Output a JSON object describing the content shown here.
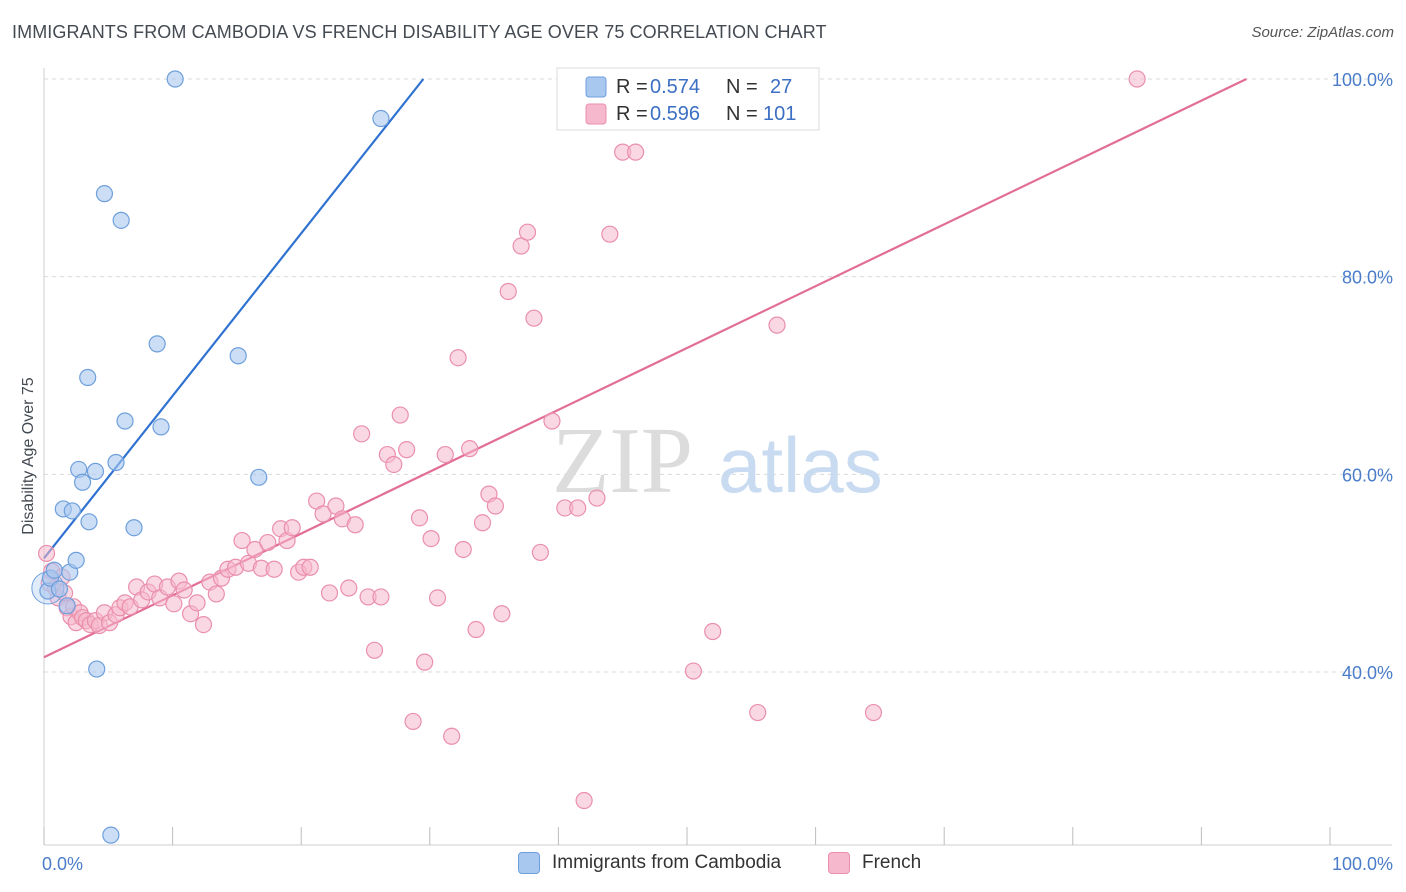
{
  "title": "IMMIGRANTS FROM CAMBODIA VS FRENCH DISABILITY AGE OVER 75 CORRELATION CHART",
  "source": "Source: ZipAtlas.com",
  "watermark": {
    "zip": "ZIP",
    "atlas": "atlas"
  },
  "legend": {
    "rows": [
      {
        "r_label": "R =",
        "r_value": "0.574",
        "n_label": "N =",
        "n_value": "27"
      },
      {
        "r_label": "R =",
        "r_value": "0.596",
        "n_label": "N =",
        "n_value": "101"
      }
    ]
  },
  "bottom_legend": {
    "series1": "Immigrants from Cambodia",
    "series2": "French"
  },
  "colors": {
    "blue_fill": "#a9c8f0",
    "blue_stroke": "#6e9fdc",
    "blue_line": "#2f72d0",
    "pink_fill": "#f6b8cc",
    "pink_stroke": "#ea8fac",
    "pink_line": "#e26d97",
    "tick_text": "#4a7cc9"
  },
  "chart_data": {
    "type": "scatter",
    "title": "IMMIGRANTS FROM CAMBODIA VS FRENCH DISABILITY AGE OVER 75 CORRELATION CHART",
    "xlabel": "",
    "ylabel": "Disability Age Over 75",
    "xlim": [
      0,
      100
    ],
    "ylim": [
      22.5,
      100
    ],
    "x_tick_labels": [
      "0.0%",
      "100.0%"
    ],
    "y_ticks": [
      40,
      60,
      80,
      100
    ],
    "y_tick_labels": [
      "40.0%",
      "60.0%",
      "80.0%",
      "100.0%"
    ],
    "grid": true,
    "series": [
      {
        "name": "Immigrants from Cambodia",
        "color": "#a9c8f0",
        "r": 0.574,
        "n": 27,
        "points": [
          [
            0.3,
            48.2
          ],
          [
            0.5,
            49.5
          ],
          [
            0.8,
            50.3
          ],
          [
            1.2,
            48.4
          ],
          [
            1.5,
            56.5
          ],
          [
            1.8,
            46.7
          ],
          [
            2.0,
            50.1
          ],
          [
            2.2,
            56.3
          ],
          [
            2.5,
            51.3
          ],
          [
            2.7,
            60.5
          ],
          [
            3.0,
            59.2
          ],
          [
            3.5,
            55.2
          ],
          [
            3.4,
            69.8
          ],
          [
            4.0,
            60.3
          ],
          [
            4.1,
            40.3
          ],
          [
            4.7,
            88.4
          ],
          [
            5.2,
            23.5
          ],
          [
            6.0,
            85.7
          ],
          [
            5.6,
            61.2
          ],
          [
            6.3,
            65.4
          ],
          [
            7.0,
            54.6
          ],
          [
            8.8,
            73.2
          ],
          [
            9.1,
            64.8
          ],
          [
            10.2,
            100.0
          ],
          [
            15.1,
            72.0
          ],
          [
            16.7,
            59.7
          ],
          [
            26.2,
            96.0
          ]
        ],
        "trend": {
          "x": [
            0.0,
            29.5
          ],
          "y": [
            51.5,
            100.0
          ]
        }
      },
      {
        "name": "French",
        "color": "#f6b8cc",
        "r": 0.596,
        "n": 101,
        "points": [
          [
            0.2,
            52.0
          ],
          [
            0.4,
            49.0
          ],
          [
            0.6,
            50.2
          ],
          [
            0.9,
            48.5
          ],
          [
            1.1,
            47.5
          ],
          [
            1.4,
            49.6
          ],
          [
            1.6,
            48.0
          ],
          [
            1.8,
            46.5
          ],
          [
            2.1,
            45.6
          ],
          [
            2.3,
            46.6
          ],
          [
            2.5,
            45.0
          ],
          [
            2.8,
            46.0
          ],
          [
            3.0,
            45.5
          ],
          [
            3.3,
            45.2
          ],
          [
            3.6,
            44.8
          ],
          [
            4.0,
            45.2
          ],
          [
            4.3,
            44.7
          ],
          [
            4.7,
            46.0
          ],
          [
            5.1,
            45.0
          ],
          [
            5.6,
            45.8
          ],
          [
            5.9,
            46.5
          ],
          [
            6.3,
            47.0
          ],
          [
            6.7,
            46.6
          ],
          [
            7.2,
            48.6
          ],
          [
            7.6,
            47.3
          ],
          [
            8.1,
            48.1
          ],
          [
            8.6,
            48.9
          ],
          [
            9.0,
            47.5
          ],
          [
            9.6,
            48.6
          ],
          [
            10.1,
            46.9
          ],
          [
            10.5,
            49.2
          ],
          [
            10.9,
            48.3
          ],
          [
            11.4,
            45.9
          ],
          [
            11.9,
            47.0
          ],
          [
            12.4,
            44.8
          ],
          [
            12.9,
            49.1
          ],
          [
            13.4,
            47.9
          ],
          [
            13.8,
            49.5
          ],
          [
            14.3,
            50.4
          ],
          [
            14.9,
            50.6
          ],
          [
            15.4,
            53.3
          ],
          [
            15.9,
            51.0
          ],
          [
            16.4,
            52.4
          ],
          [
            16.9,
            50.5
          ],
          [
            17.4,
            53.1
          ],
          [
            17.9,
            50.4
          ],
          [
            18.4,
            54.5
          ],
          [
            18.9,
            53.3
          ],
          [
            19.3,
            54.6
          ],
          [
            19.8,
            50.1
          ],
          [
            20.2,
            50.6
          ],
          [
            20.7,
            50.6
          ],
          [
            21.2,
            57.3
          ],
          [
            21.7,
            56.0
          ],
          [
            22.2,
            48.0
          ],
          [
            22.7,
            56.8
          ],
          [
            23.2,
            55.5
          ],
          [
            23.7,
            48.5
          ],
          [
            24.2,
            54.9
          ],
          [
            24.7,
            64.1
          ],
          [
            25.2,
            47.6
          ],
          [
            25.7,
            42.2
          ],
          [
            26.2,
            47.6
          ],
          [
            26.7,
            62.0
          ],
          [
            27.2,
            61.0
          ],
          [
            27.7,
            66.0
          ],
          [
            28.2,
            62.5
          ],
          [
            28.7,
            35.0
          ],
          [
            29.2,
            55.6
          ],
          [
            29.6,
            41.0
          ],
          [
            30.1,
            53.5
          ],
          [
            30.6,
            47.5
          ],
          [
            31.2,
            62.0
          ],
          [
            31.7,
            33.5
          ],
          [
            32.2,
            71.8
          ],
          [
            32.6,
            52.4
          ],
          [
            33.1,
            62.6
          ],
          [
            33.6,
            44.3
          ],
          [
            34.1,
            55.1
          ],
          [
            34.6,
            58.0
          ],
          [
            35.1,
            56.8
          ],
          [
            35.6,
            45.9
          ],
          [
            36.1,
            78.5
          ],
          [
            37.1,
            83.1
          ],
          [
            37.6,
            84.5
          ],
          [
            38.1,
            75.8
          ],
          [
            38.6,
            52.1
          ],
          [
            39.5,
            65.4
          ],
          [
            40.5,
            56.6
          ],
          [
            41.5,
            56.6
          ],
          [
            42.0,
            27.0
          ],
          [
            43.0,
            57.6
          ],
          [
            44.0,
            84.3
          ],
          [
            45.0,
            92.6
          ],
          [
            46.0,
            92.6
          ],
          [
            50.5,
            40.1
          ],
          [
            52.0,
            44.1
          ],
          [
            55.5,
            35.9
          ],
          [
            57.0,
            75.1
          ],
          [
            64.5,
            35.9
          ],
          [
            85.0,
            100.0
          ]
        ],
        "trend": {
          "x": [
            0.0,
            93.5
          ],
          "y": [
            41.5,
            100.0
          ]
        }
      }
    ]
  }
}
